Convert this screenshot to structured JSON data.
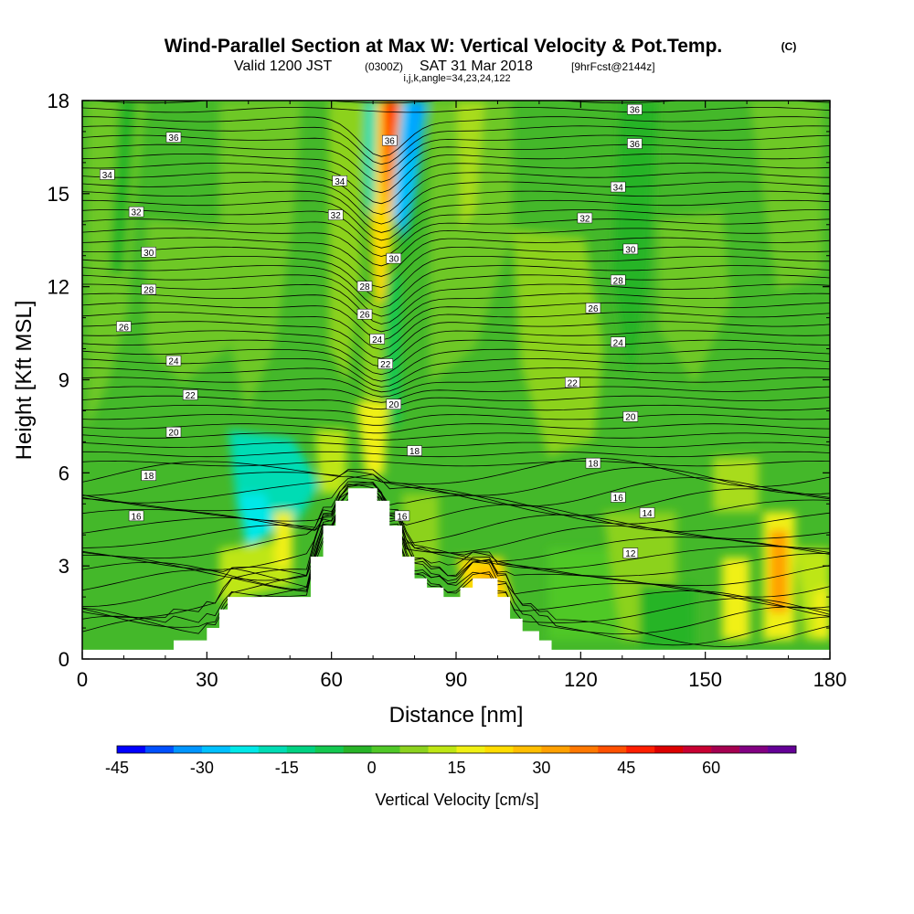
{
  "title": {
    "main": "Wind-Parallel Section at Max W: Vertical Velocity & Pot.Temp.",
    "copyright": "(C)",
    "valid_prefix": "Valid 1200 JST",
    "valid_zulu": "(0300Z)",
    "valid_suffix": "SAT 31 Mar 2018",
    "forecast": "[9hrFcst@2144z]",
    "indices": "i,j,k,angle=34,23,24,122"
  },
  "chart_data": {
    "type": "heatmap",
    "x_label": "Distance [nm]",
    "y_label": "Height [Kft MSL]",
    "xlim": [
      0,
      180
    ],
    "ylim": [
      0,
      18
    ],
    "x_ticks": [
      "0",
      "30",
      "60",
      "90",
      "120",
      "150",
      "180"
    ],
    "y_ticks": [
      "0",
      "3",
      "6",
      "9",
      "12",
      "15",
      "18"
    ],
    "colorbar": {
      "label": "Vertical Velocity [cm/s]",
      "min": -45,
      "max": 70,
      "step": 5,
      "tick_labels": [
        "-45",
        "-30",
        "-15",
        "0",
        "15",
        "30",
        "45",
        "60"
      ],
      "colors": [
        "#0000ff",
        "#0050ff",
        "#0095ff",
        "#00c0ff",
        "#00e8e8",
        "#00dcb4",
        "#00d282",
        "#14c850",
        "#28b428",
        "#50c828",
        "#8cd21e",
        "#bee614",
        "#f0f014",
        "#ffdc00",
        "#ffbe00",
        "#ffa000",
        "#ff7800",
        "#ff5000",
        "#ff1e00",
        "#dc0000",
        "#c80032",
        "#a50050",
        "#820082",
        "#640096"
      ]
    },
    "terrain_kft": [
      [
        0,
        0.3
      ],
      [
        22,
        0.3
      ],
      [
        22,
        0.6
      ],
      [
        30,
        0.6
      ],
      [
        30,
        1.0
      ],
      [
        33,
        1.0
      ],
      [
        33,
        1.6
      ],
      [
        35,
        1.6
      ],
      [
        35,
        2.0
      ],
      [
        55,
        2.0
      ],
      [
        55,
        3.3
      ],
      [
        58,
        3.3
      ],
      [
        58,
        4.3
      ],
      [
        61,
        4.3
      ],
      [
        61,
        5.1
      ],
      [
        64,
        5.1
      ],
      [
        64,
        5.5
      ],
      [
        71,
        5.5
      ],
      [
        71,
        5.1
      ],
      [
        74,
        5.1
      ],
      [
        74,
        4.3
      ],
      [
        77,
        4.3
      ],
      [
        77,
        3.3
      ],
      [
        80,
        3.3
      ],
      [
        80,
        2.6
      ],
      [
        83,
        2.6
      ],
      [
        83,
        2.3
      ],
      [
        87,
        2.3
      ],
      [
        87,
        2.0
      ],
      [
        91,
        2.0
      ],
      [
        91,
        2.3
      ],
      [
        94,
        2.3
      ],
      [
        94,
        2.6
      ],
      [
        100,
        2.6
      ],
      [
        100,
        2.0
      ],
      [
        103,
        2.0
      ],
      [
        103,
        1.3
      ],
      [
        106,
        1.3
      ],
      [
        106,
        0.9
      ],
      [
        110,
        0.9
      ],
      [
        110,
        0.6
      ],
      [
        113,
        0.6
      ],
      [
        113,
        0.3
      ],
      [
        180,
        0.3
      ]
    ],
    "contour_labels": [
      {
        "x": 22,
        "y": 16.8,
        "text": "36"
      },
      {
        "x": 133,
        "y": 17.7,
        "text": "36"
      },
      {
        "x": 133,
        "y": 16.6,
        "text": "36"
      },
      {
        "x": 74,
        "y": 16.7,
        "text": "36"
      },
      {
        "x": 6,
        "y": 15.6,
        "text": "34"
      },
      {
        "x": 62,
        "y": 15.4,
        "text": "34"
      },
      {
        "x": 129,
        "y": 15.2,
        "text": "34"
      },
      {
        "x": 13,
        "y": 14.4,
        "text": "32"
      },
      {
        "x": 61,
        "y": 14.3,
        "text": "32"
      },
      {
        "x": 121,
        "y": 14.2,
        "text": "32"
      },
      {
        "x": 16,
        "y": 13.1,
        "text": "30"
      },
      {
        "x": 75,
        "y": 12.9,
        "text": "30"
      },
      {
        "x": 132,
        "y": 13.2,
        "text": "30"
      },
      {
        "x": 16,
        "y": 11.9,
        "text": "28"
      },
      {
        "x": 68,
        "y": 12.0,
        "text": "28"
      },
      {
        "x": 129,
        "y": 12.2,
        "text": "28"
      },
      {
        "x": 10,
        "y": 10.7,
        "text": "26"
      },
      {
        "x": 68,
        "y": 11.1,
        "text": "26"
      },
      {
        "x": 123,
        "y": 11.3,
        "text": "26"
      },
      {
        "x": 22,
        "y": 9.6,
        "text": "24"
      },
      {
        "x": 71,
        "y": 10.3,
        "text": "24"
      },
      {
        "x": 129,
        "y": 10.2,
        "text": "24"
      },
      {
        "x": 26,
        "y": 8.5,
        "text": "22"
      },
      {
        "x": 73,
        "y": 9.5,
        "text": "22"
      },
      {
        "x": 118,
        "y": 8.9,
        "text": "22"
      },
      {
        "x": 22,
        "y": 7.3,
        "text": "20"
      },
      {
        "x": 75,
        "y": 8.2,
        "text": "20"
      },
      {
        "x": 132,
        "y": 7.8,
        "text": "20"
      },
      {
        "x": 16,
        "y": 5.9,
        "text": "18"
      },
      {
        "x": 80,
        "y": 6.7,
        "text": "18"
      },
      {
        "x": 123,
        "y": 6.3,
        "text": "18"
      },
      {
        "x": 13,
        "y": 4.6,
        "text": "16"
      },
      {
        "x": 77,
        "y": 4.6,
        "text": "16"
      },
      {
        "x": 129,
        "y": 5.2,
        "text": "16"
      },
      {
        "x": 136,
        "y": 4.7,
        "text": "14"
      },
      {
        "x": 132,
        "y": 3.4,
        "text": "12"
      }
    ]
  }
}
